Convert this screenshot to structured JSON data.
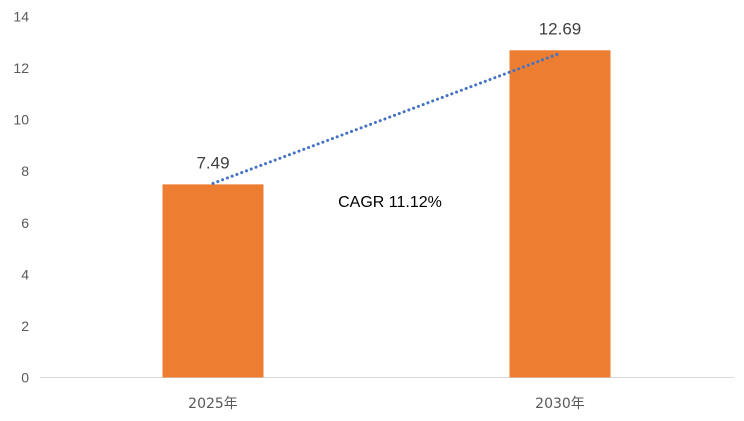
{
  "chart_data": {
    "type": "bar",
    "title": "",
    "xlabel": "",
    "ylabel": "",
    "categories": [
      "2025年",
      "2030年"
    ],
    "values": [
      7.49,
      12.69
    ],
    "data_labels": [
      "7.49",
      "12.69"
    ],
    "y_ticks": [
      "0",
      "2",
      "4",
      "6",
      "8",
      "10",
      "12",
      "14"
    ],
    "ylim": [
      0,
      14
    ],
    "grid": false,
    "legend": "none",
    "annotation": "CAGR 11.12%",
    "trend_line": {
      "style": "dotted",
      "from_category": "2025年",
      "to_category": "2030年"
    },
    "colors": {
      "bar": "#ED7D31",
      "trend": "#4472C4",
      "axis": "#D9D9D9"
    }
  }
}
